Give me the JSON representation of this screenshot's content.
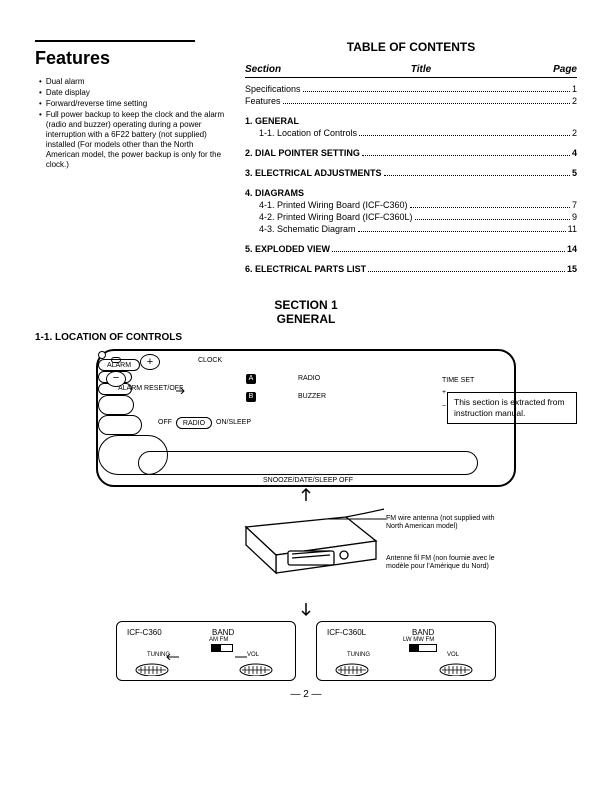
{
  "features": {
    "title": "Features",
    "items": [
      "Dual alarm",
      "Date display",
      "Forward/reverse time setting",
      "Full power backup to keep the clock and the alarm (radio and buzzer) operating during a power interruption with a 6F22 battery (not supplied) installed (For models other than the North American model, the power backup is only for the clock.)"
    ]
  },
  "toc": {
    "heading": "TABLE OF CONTENTS",
    "col_section": "Section",
    "col_title": "Title",
    "col_page": "Page",
    "pre": [
      {
        "label": "Specifications",
        "page": "1"
      },
      {
        "label": "Features",
        "page": "2"
      }
    ],
    "sections": [
      {
        "num": "1.",
        "title": "GENERAL",
        "page": "",
        "subs": [
          {
            "label": "1-1. Location of Controls",
            "page": "2"
          }
        ]
      },
      {
        "num": "2.",
        "title": "DIAL POINTER SETTING",
        "page": "4",
        "subs": []
      },
      {
        "num": "3.",
        "title": "ELECTRICAL ADJUSTMENTS",
        "page": "5",
        "subs": []
      },
      {
        "num": "4.",
        "title": "DIAGRAMS",
        "page": "",
        "subs": [
          {
            "label": "4-1. Printed Wiring Board (ICF-C360)",
            "page": "7"
          },
          {
            "label": "4-2. Printed Wiring Board (ICF-C360L)",
            "page": "9"
          },
          {
            "label": "4-3. Schematic Diagram",
            "page": "11"
          }
        ]
      },
      {
        "num": "5.",
        "title": "EXPLODED VIEW",
        "page": "14",
        "subs": []
      },
      {
        "num": "6.",
        "title": "ELECTRICAL PARTS LIST",
        "page": "15",
        "subs": []
      }
    ]
  },
  "section_header": {
    "line1": "SECTION  1",
    "line2": "GENERAL"
  },
  "extract_note": "This section is extracted from instruction manual.",
  "loc_title": "1-1. LOCATION OF CONTROLS",
  "panel": {
    "clock": "CLOCK",
    "alarm": "ALARM",
    "radio": "RADIO",
    "buzzer": "BUZZER",
    "alarm_reset": "ALARM RESET/OFF",
    "a": "A",
    "b": "B",
    "off": "OFF",
    "radio_mode": "RADIO",
    "on_sleep": "ON/SLEEP",
    "time_set": "TIME SET",
    "plus": "+",
    "minus": "−",
    "snooze": "SNOOZE/DATE/SLEEP OFF"
  },
  "antenna": {
    "en": "FM wire antenna (not supplied with North American model)",
    "fr": "Antenne fil FM (non fournie avec le modèle pour l'Amérique du Nord)"
  },
  "boxes": [
    {
      "model": "ICF-C360",
      "band": "BAND",
      "sub": "AM  FM",
      "tuning": "TUNING",
      "vol": "VOL"
    },
    {
      "model": "ICF-C360L",
      "band": "BAND",
      "sub": "LW MW FM",
      "tuning": "TUNING",
      "vol": "VOL"
    }
  ],
  "page_number": "—  2  —",
  "colors": {
    "text": "#000000",
    "bg": "#ffffff"
  }
}
